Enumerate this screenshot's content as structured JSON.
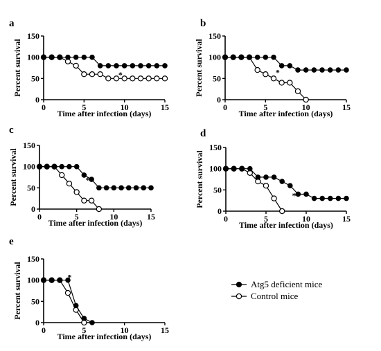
{
  "legend": {
    "items": [
      {
        "label": "Atg5 deficient mice",
        "marker": "filled"
      },
      {
        "label": "Control mice",
        "marker": "open"
      }
    ],
    "placement": "bottom-right"
  },
  "chart_data": [
    {
      "type": "line",
      "panel": "a",
      "xlabel": "Time after infection (days)",
      "ylabel": "Percent survival",
      "xlim": [
        0,
        15
      ],
      "ylim": [
        0,
        150
      ],
      "xticks": [
        "0",
        "5",
        "10",
        "15"
      ],
      "yticks": [
        "0",
        "50",
        "100",
        "150"
      ],
      "annotation": "*",
      "series": [
        {
          "marker": "filled",
          "x": [
            0,
            1,
            2,
            3,
            4,
            5,
            6,
            7,
            8,
            9,
            10,
            11,
            12,
            13,
            14,
            15
          ],
          "y": [
            100,
            100,
            100,
            100,
            100,
            100,
            100,
            80,
            80,
            80,
            80,
            80,
            80,
            80,
            80,
            80
          ]
        },
        {
          "marker": "open",
          "x": [
            0,
            1,
            2,
            3,
            4,
            5,
            6,
            7,
            8,
            9,
            10,
            11,
            12,
            13,
            14,
            15
          ],
          "y": [
            100,
            100,
            100,
            90,
            80,
            60,
            60,
            60,
            50,
            50,
            50,
            50,
            50,
            50,
            50,
            50
          ]
        }
      ]
    },
    {
      "type": "line",
      "panel": "b",
      "xlabel": "Time after infection (days)",
      "ylabel": "Percent survival",
      "xlim": [
        0,
        15
      ],
      "ylim": [
        0,
        150
      ],
      "xticks": [
        "0",
        "5",
        "10",
        "15"
      ],
      "yticks": [
        "0",
        "50",
        "100",
        "150"
      ],
      "annotation": "*",
      "series": [
        {
          "marker": "filled",
          "x": [
            0,
            1,
            2,
            3,
            4,
            5,
            6,
            7,
            8,
            9,
            10,
            11,
            12,
            13,
            14,
            15
          ],
          "y": [
            100,
            100,
            100,
            100,
            100,
            100,
            100,
            80,
            80,
            70,
            70,
            70,
            70,
            70,
            70,
            70
          ]
        },
        {
          "marker": "open",
          "x": [
            0,
            1,
            2,
            3,
            4,
            5,
            6,
            7,
            8,
            9,
            10
          ],
          "y": [
            100,
            100,
            100,
            100,
            70,
            60,
            50,
            40,
            40,
            20,
            0
          ]
        }
      ]
    },
    {
      "type": "line",
      "panel": "c",
      "xlabel": "Time after infection (days)",
      "ylabel": "Percent survival",
      "xlim": [
        0,
        15
      ],
      "ylim": [
        0,
        150
      ],
      "xticks": [
        "0",
        "5",
        "10",
        "15"
      ],
      "yticks": [
        "0",
        "50",
        "100",
        "150"
      ],
      "annotation": "*",
      "series": [
        {
          "marker": "filled",
          "x": [
            0,
            1,
            2,
            3,
            4,
            5,
            6,
            7,
            8,
            9,
            10,
            11,
            12,
            13,
            14,
            15
          ],
          "y": [
            100,
            100,
            100,
            100,
            100,
            100,
            80,
            70,
            50,
            50,
            50,
            50,
            50,
            50,
            50,
            50
          ]
        },
        {
          "marker": "open",
          "x": [
            0,
            1,
            2,
            3,
            4,
            5,
            6,
            7,
            8
          ],
          "y": [
            100,
            100,
            100,
            80,
            60,
            40,
            20,
            20,
            0
          ]
        }
      ]
    },
    {
      "type": "line",
      "panel": "d",
      "xlabel": "Time after infection (days)",
      "ylabel": "Percent survival",
      "xlim": [
        0,
        15
      ],
      "ylim": [
        0,
        150
      ],
      "xticks": [
        "0",
        "5",
        "10",
        "15"
      ],
      "yticks": [
        "0",
        "50",
        "100",
        "150"
      ],
      "annotation": "*",
      "series": [
        {
          "marker": "filled",
          "x": [
            0,
            1,
            2,
            3,
            4,
            5,
            6,
            7,
            8,
            9,
            10,
            11,
            12,
            13,
            14,
            15
          ],
          "y": [
            100,
            100,
            100,
            100,
            80,
            80,
            80,
            70,
            60,
            40,
            40,
            30,
            30,
            30,
            30,
            30
          ]
        },
        {
          "marker": "open",
          "x": [
            0,
            1,
            2,
            3,
            4,
            5,
            6,
            7
          ],
          "y": [
            100,
            100,
            100,
            90,
            70,
            60,
            30,
            0
          ]
        }
      ]
    },
    {
      "type": "line",
      "panel": "e",
      "xlabel": "Time after infection (days)",
      "ylabel": "Percent survival",
      "xlim": [
        0,
        15
      ],
      "ylim": [
        0,
        150
      ],
      "xticks": [
        "0",
        "5",
        "10",
        "15"
      ],
      "yticks": [
        "0",
        "50",
        "100",
        "150"
      ],
      "annotation": "*",
      "series": [
        {
          "marker": "filled",
          "x": [
            0,
            1,
            2,
            3,
            4,
            5,
            6
          ],
          "y": [
            100,
            100,
            100,
            100,
            40,
            10,
            0
          ]
        },
        {
          "marker": "open",
          "x": [
            0,
            1,
            2,
            3,
            4,
            5
          ],
          "y": [
            100,
            100,
            100,
            70,
            30,
            0
          ]
        }
      ]
    }
  ]
}
